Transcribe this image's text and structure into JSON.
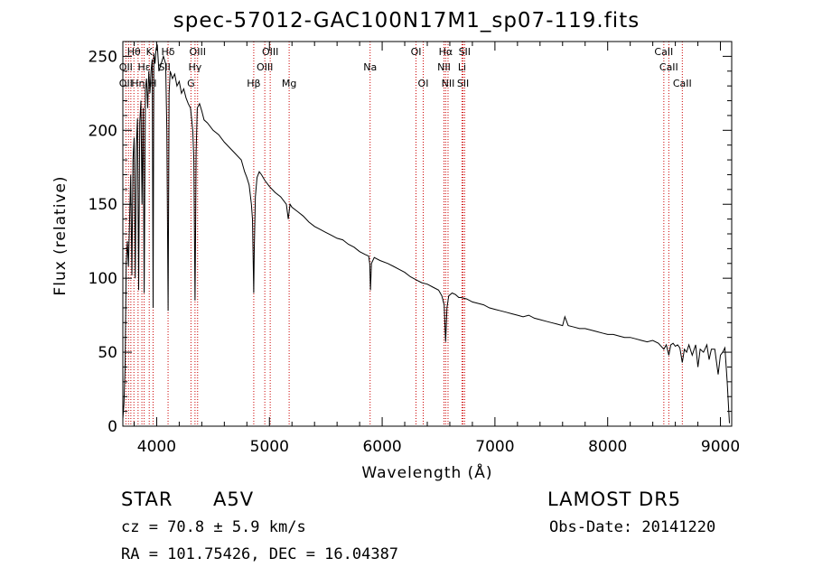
{
  "chart_data": {
    "type": "line",
    "title": "spec-57012-GAC100N17M1_sp07-119.fits",
    "xlabel": "Wavelength (Å)",
    "ylabel": "Flux (relative)",
    "xlim": [
      3700,
      9100
    ],
    "ylim": [
      0,
      260
    ],
    "xticks": [
      4000,
      5000,
      6000,
      7000,
      8000,
      9000
    ],
    "yticks": [
      0,
      50,
      100,
      150,
      200,
      250
    ],
    "grid": false,
    "series": [
      {
        "x": [
          3700,
          3710,
          3720,
          3730,
          3740,
          3750,
          3760,
          3770,
          3780,
          3790,
          3800,
          3810,
          3820,
          3830,
          3840,
          3850,
          3860,
          3870,
          3880,
          3889,
          3900,
          3910,
          3920,
          3930,
          3934,
          3940,
          3950,
          3960,
          3968,
          3975,
          3985,
          3995,
          4005,
          4020,
          4040,
          4060,
          4080,
          4090,
          4101,
          4110,
          4120,
          4140,
          4160,
          4180,
          4200,
          4220,
          4240,
          4260,
          4280,
          4300,
          4320,
          4330,
          4340,
          4345,
          4350,
          4360,
          4380,
          4400,
          4420,
          4450,
          4500,
          4550,
          4600,
          4650,
          4700,
          4750,
          4780,
          4800,
          4820,
          4840,
          4850,
          4855,
          4861,
          4866,
          4875,
          4890,
          4910,
          4930,
          4960,
          5000,
          5050,
          5100,
          5150,
          5167,
          5183,
          5200,
          5250,
          5300,
          5350,
          5400,
          5450,
          5500,
          5550,
          5600,
          5650,
          5700,
          5750,
          5800,
          5850,
          5880,
          5890,
          5896,
          5905,
          5930,
          5980,
          6050,
          6100,
          6150,
          6200,
          6250,
          6300,
          6350,
          6400,
          6450,
          6500,
          6530,
          6550,
          6563,
          6575,
          6590,
          6620,
          6650,
          6680,
          6700,
          6750,
          6800,
          6850,
          6900,
          6950,
          7000,
          7050,
          7100,
          7150,
          7200,
          7250,
          7300,
          7350,
          7400,
          7450,
          7500,
          7550,
          7600,
          7620,
          7650,
          7700,
          7750,
          7800,
          7850,
          7900,
          7950,
          8000,
          8050,
          8100,
          8150,
          8200,
          8250,
          8300,
          8350,
          8400,
          8450,
          8498,
          8520,
          8542,
          8560,
          8580,
          8600,
          8620,
          8640,
          8662,
          8680,
          8700,
          8720,
          8750,
          8780,
          8800,
          8820,
          8850,
          8880,
          8900,
          8920,
          8950,
          8980,
          9000,
          9020,
          9040,
          9060,
          9080
        ],
        "y": [
          5,
          15,
          40,
          110,
          125,
          108,
          140,
          170,
          102,
          180,
          195,
          100,
          190,
          208,
          92,
          205,
          220,
          150,
          215,
          90,
          228,
          235,
          215,
          240,
          235,
          225,
          240,
          248,
          80,
          252,
          245,
          255,
          258,
          240,
          245,
          250,
          245,
          200,
          78,
          225,
          240,
          235,
          238,
          230,
          233,
          225,
          228,
          222,
          218,
          215,
          200,
          180,
          85,
          130,
          185,
          215,
          218,
          213,
          207,
          205,
          200,
          197,
          192,
          188,
          184,
          180,
          172,
          168,
          163,
          150,
          140,
          115,
          90,
          120,
          155,
          168,
          172,
          170,
          166,
          162,
          158,
          155,
          150,
          140,
          150,
          148,
          145,
          142,
          138,
          135,
          133,
          131,
          129,
          127,
          126,
          123,
          121,
          118,
          116,
          115,
          110,
          92,
          110,
          114,
          112,
          110,
          108,
          106,
          104,
          101,
          99,
          97,
          96,
          94,
          92,
          88,
          82,
          57,
          80,
          88,
          90,
          89,
          87,
          87,
          86,
          84,
          83,
          82,
          80,
          79,
          78,
          77,
          76,
          75,
          74,
          75,
          73,
          72,
          71,
          70,
          69,
          68,
          74,
          68,
          67,
          66,
          66,
          65,
          64,
          63,
          62,
          62,
          61,
          60,
          60,
          59,
          58,
          57,
          58,
          56,
          52,
          55,
          48,
          55,
          56,
          54,
          55,
          53,
          43,
          52,
          50,
          55,
          48,
          55,
          40,
          52,
          50,
          55,
          45,
          52,
          52,
          35,
          48,
          50,
          53,
          30,
          2
        ]
      }
    ],
    "lines": {
      "color": "#cc0000",
      "positions": [
        3727,
        3750,
        3771,
        3798,
        3835,
        3869,
        3889,
        3934,
        3968,
        4101,
        4304,
        4340,
        4363,
        4861,
        4959,
        5007,
        5175,
        5893,
        6300,
        6364,
        6548,
        6563,
        6584,
        6708,
        6717,
        6731,
        8498,
        8542,
        8662
      ]
    },
    "line_labels": [
      {
        "text": "Hθ",
        "x": 3798,
        "row": 0
      },
      {
        "text": "K",
        "x": 3934,
        "row": 0
      },
      {
        "text": "Hδ",
        "x": 4101,
        "row": 0
      },
      {
        "text": "OIII",
        "x": 4363,
        "row": 0
      },
      {
        "text": "OIII",
        "x": 5007,
        "row": 0
      },
      {
        "text": "OI",
        "x": 6300,
        "row": 0
      },
      {
        "text": "Hα",
        "x": 6563,
        "row": 0
      },
      {
        "text": "SII",
        "x": 6731,
        "row": 0
      },
      {
        "text": "CaII",
        "x": 8498,
        "row": 0
      },
      {
        "text": "OII",
        "x": 3727,
        "row": 1
      },
      {
        "text": "Hε",
        "x": 3889,
        "row": 1
      },
      {
        "text": "SII",
        "x": 4070,
        "row": 1
      },
      {
        "text": "Hγ",
        "x": 4340,
        "row": 1
      },
      {
        "text": "OIII",
        "x": 4959,
        "row": 1
      },
      {
        "text": "Na",
        "x": 5893,
        "row": 1
      },
      {
        "text": "NII",
        "x": 6548,
        "row": 1
      },
      {
        "text": "Li",
        "x": 6708,
        "row": 1
      },
      {
        "text": "CaII",
        "x": 8542,
        "row": 1
      },
      {
        "text": "OII",
        "x": 3727,
        "row": 2
      },
      {
        "text": "Hη",
        "x": 3835,
        "row": 2
      },
      {
        "text": "H",
        "x": 3968,
        "row": 2
      },
      {
        "text": "G",
        "x": 4304,
        "row": 2
      },
      {
        "text": "Hβ",
        "x": 4861,
        "row": 2
      },
      {
        "text": "Mg",
        "x": 5175,
        "row": 2
      },
      {
        "text": "OI",
        "x": 6364,
        "row": 2
      },
      {
        "text": "NII",
        "x": 6584,
        "row": 2
      },
      {
        "text": "SII",
        "x": 6717,
        "row": 2
      },
      {
        "text": "CaII",
        "x": 8662,
        "row": 2
      }
    ]
  },
  "info": {
    "class": "STAR",
    "subclass": "A5V",
    "survey": "LAMOST  DR5",
    "cz": "cz = 70.8 ± 5.9 km/s",
    "obs_date": "Obs-Date: 20141220",
    "radec": "RA = 101.75426, DEC =  16.04387"
  }
}
